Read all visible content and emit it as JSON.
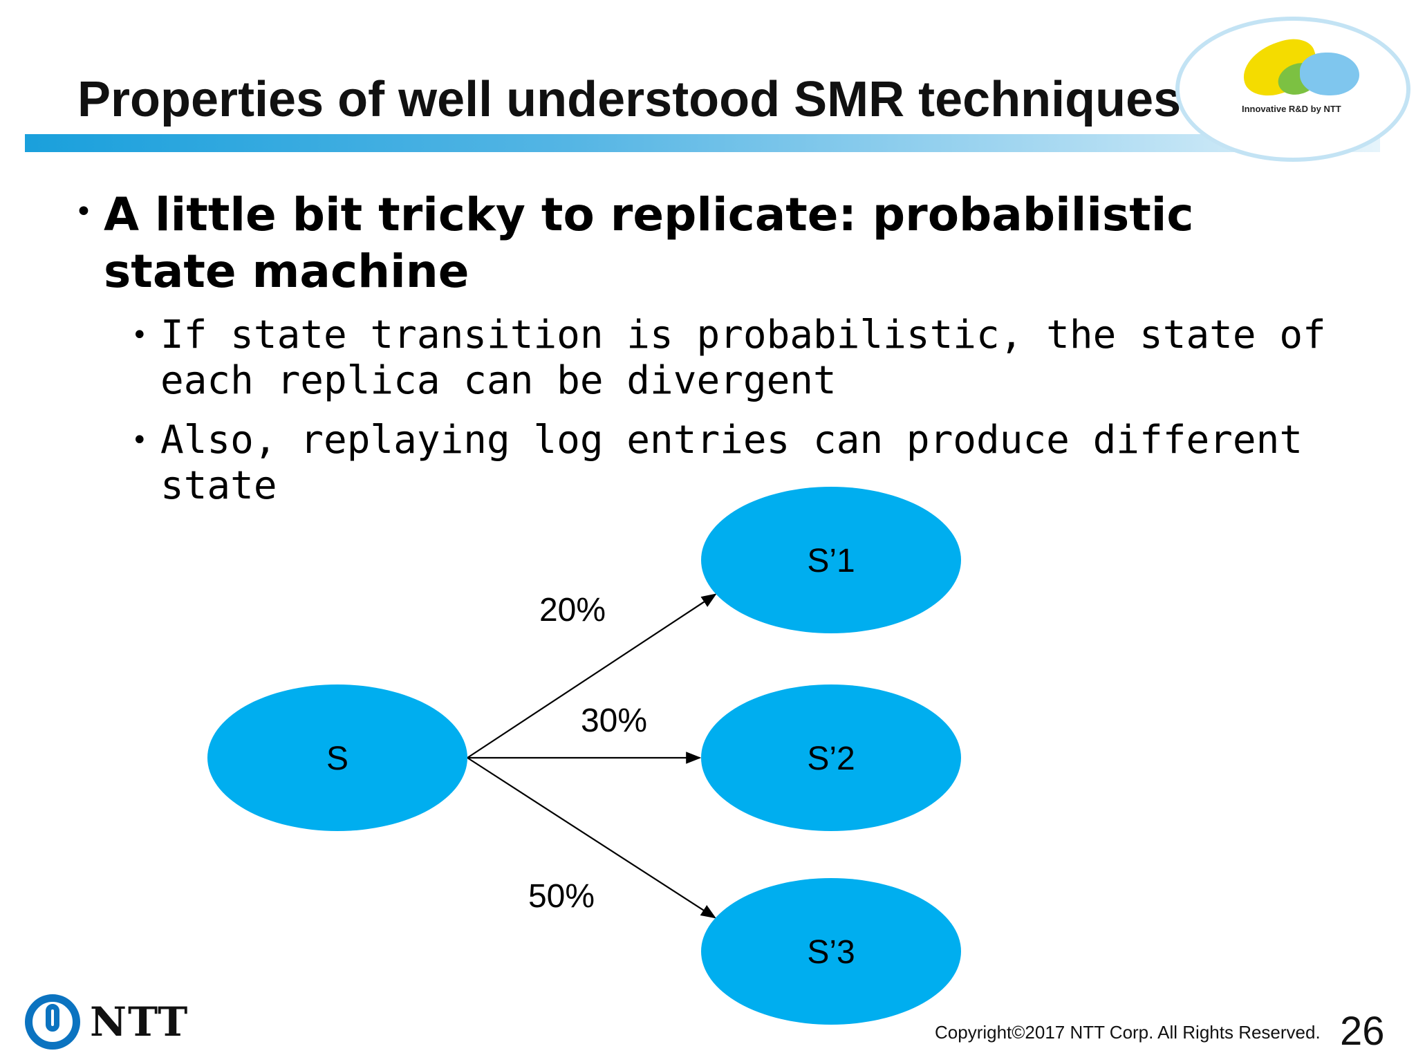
{
  "slide": {
    "title": "Properties of well understood SMR techniques",
    "header_logo_tagline": "Innovative R&D by NTT",
    "bullet": "A little bit tricky to replicate: probabilistic state machine",
    "sub_bullets": [
      "If state transition is probabilistic, the state of each replica can be divergent",
      "Also, replaying log entries can produce different state"
    ],
    "bullet_glyph": "•",
    "footer": {
      "brand": "NTT",
      "copyright": "Copyright©2017 NTT Corp. All Rights Reserved.",
      "page_number": "26"
    }
  },
  "diagram": {
    "node_color": "#00AEEF",
    "nodes": [
      {
        "id": "s",
        "label": "S"
      },
      {
        "id": "s1",
        "label": "S’1"
      },
      {
        "id": "s2",
        "label": "S’2"
      },
      {
        "id": "s3",
        "label": "S’3"
      }
    ],
    "edges": [
      {
        "from": "s",
        "to": "s1",
        "label": "20%"
      },
      {
        "from": "s",
        "to": "s2",
        "label": "30%"
      },
      {
        "from": "s",
        "to": "s3",
        "label": "50%"
      }
    ]
  }
}
